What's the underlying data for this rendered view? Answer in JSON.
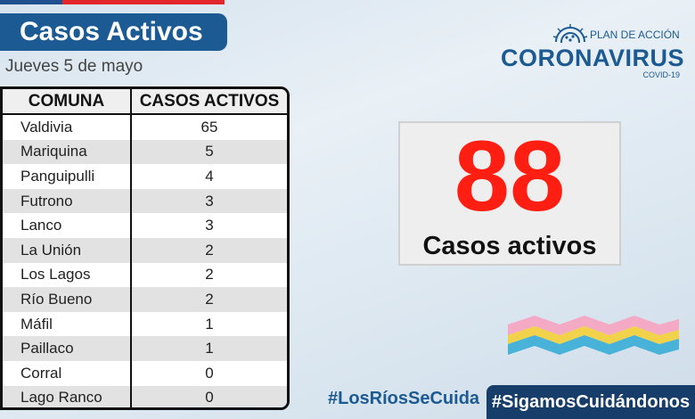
{
  "header": {
    "title": "Casos Activos",
    "date": "Jueves 5 de mayo"
  },
  "table": {
    "headers": [
      "COMUNA",
      "CASOS ACTIVOS"
    ],
    "rows": [
      {
        "comuna": "Valdivia",
        "casos": "65"
      },
      {
        "comuna": "Mariquina",
        "casos": "5"
      },
      {
        "comuna": "Panguipulli",
        "casos": "4"
      },
      {
        "comuna": "Futrono",
        "casos": "3"
      },
      {
        "comuna": "Lanco",
        "casos": "3"
      },
      {
        "comuna": "La Unión",
        "casos": "2"
      },
      {
        "comuna": "Los Lagos",
        "casos": "2"
      },
      {
        "comuna": "Río Bueno",
        "casos": "2"
      },
      {
        "comuna": "Máfil",
        "casos": "1"
      },
      {
        "comuna": "Paillaco",
        "casos": "1"
      },
      {
        "comuna": "Corral",
        "casos": "0"
      },
      {
        "comuna": "Lago Ranco",
        "casos": "0"
      }
    ]
  },
  "logo": {
    "plan": "PLAN DE ACCIÓN",
    "name": "CORONAVIRUS",
    "sub": "COVID-19",
    "icon": "virus-icon"
  },
  "summary": {
    "value": "88",
    "label": "Casos activos"
  },
  "footer": {
    "hashtag_left": "#LosRíosSeCuida",
    "hashtag_right": "#SigamosCuidándonos"
  },
  "colors": {
    "brand_blue": "#1b5a93",
    "dark_blue": "#173e6b",
    "accent_red": "#ff1f12"
  }
}
